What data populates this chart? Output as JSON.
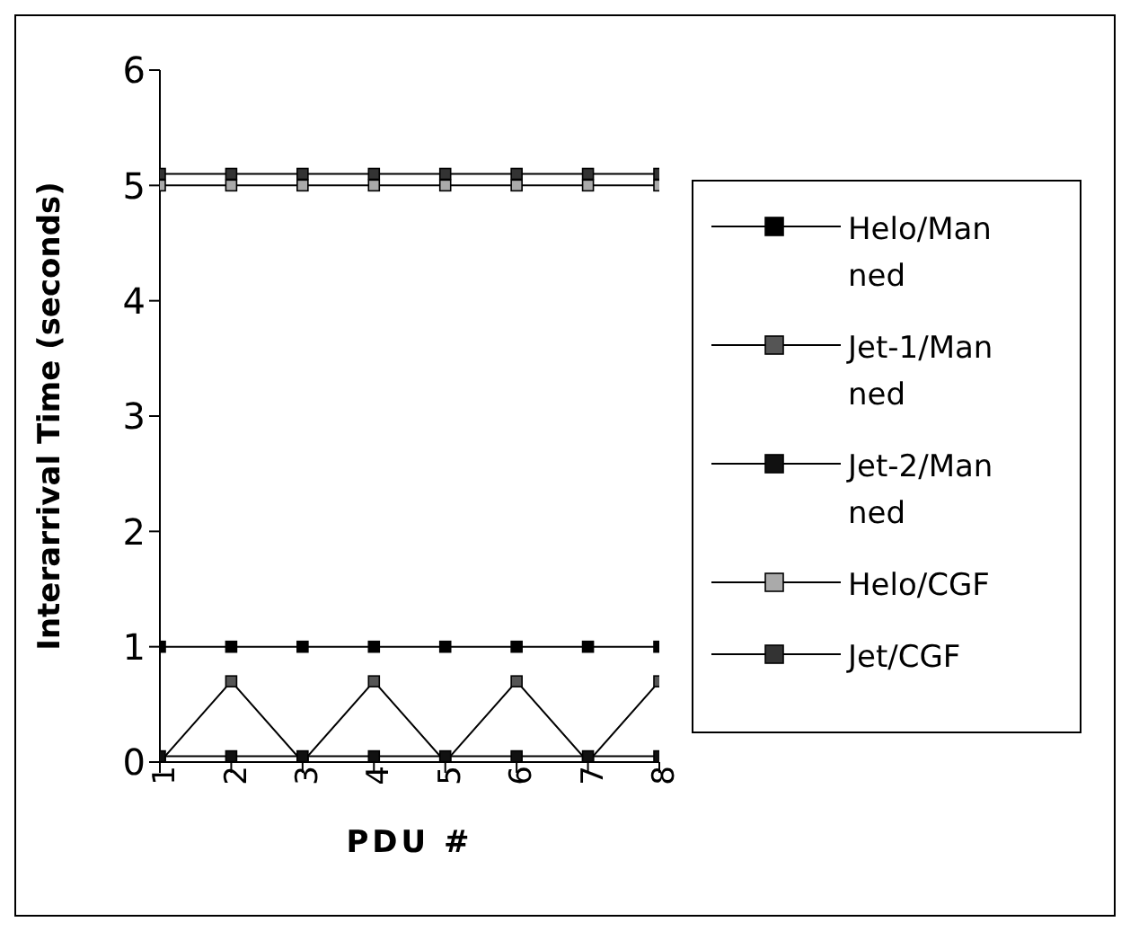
{
  "chart_data": {
    "type": "line",
    "xlabel": "PDU #",
    "ylabel": "Interarrival Time (seconds)",
    "x": [
      1,
      2,
      3,
      4,
      5,
      6,
      7,
      8
    ],
    "xlim": [
      1,
      8
    ],
    "xticks": [
      1,
      2,
      3,
      4,
      5,
      6,
      7,
      8
    ],
    "ylim": [
      0,
      6
    ],
    "yticks": [
      0,
      1,
      2,
      3,
      4,
      5,
      6
    ],
    "grid": false,
    "legend": "right",
    "marker": "square",
    "line_style": "solid",
    "series": [
      {
        "name": "Helo/Manned",
        "color": "#000000",
        "values": [
          1,
          1,
          1,
          1,
          1,
          1,
          1,
          1
        ]
      },
      {
        "name": "Jet-1/Manned",
        "color": "#555555",
        "values": [
          0,
          0.7,
          0,
          0.7,
          0,
          0.7,
          0,
          0.7
        ]
      },
      {
        "name": "Jet-2/Manned",
        "color": "#111111",
        "values": [
          0.05,
          0.05,
          0.05,
          0.05,
          0.05,
          0.05,
          0.05,
          0.05
        ]
      },
      {
        "name": "Helo/CGF",
        "color": "#aaaaaa",
        "values": [
          5,
          5,
          5,
          5,
          5,
          5,
          5,
          5
        ]
      },
      {
        "name": "Jet/CGF",
        "color": "#333333",
        "values": [
          5.1,
          5.1,
          5.1,
          5.1,
          5.1,
          5.1,
          5.1,
          5.1
        ]
      }
    ]
  }
}
